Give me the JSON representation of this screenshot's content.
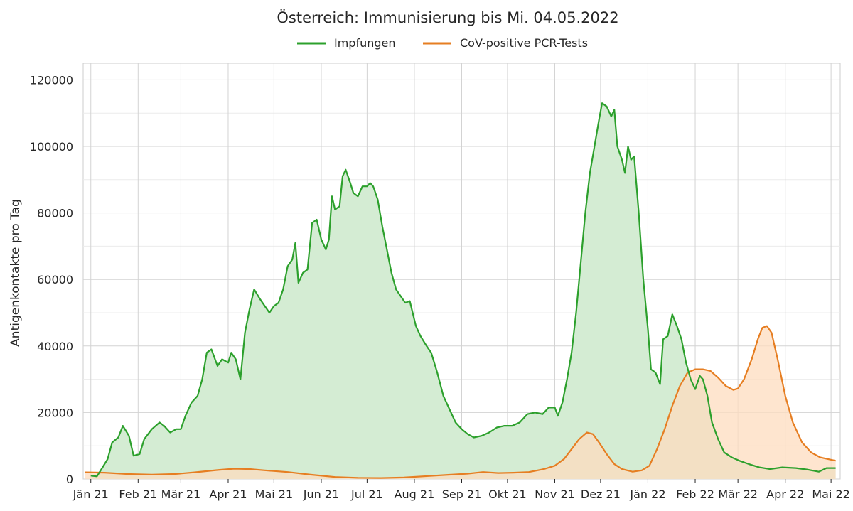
{
  "chart_data": {
    "type": "line",
    "title": "Österreich: Immunisierung bis Mi. 04.05.2022",
    "xlabel": "",
    "ylabel": "Antigenkontakte pro Tag",
    "ylim": [
      0,
      125000
    ],
    "xlim": [
      "2020-12-27",
      "2022-05-07"
    ],
    "yticks": [
      0,
      20000,
      40000,
      60000,
      80000,
      100000,
      120000
    ],
    "ytick_labels": [
      "0",
      "20000",
      "40000",
      "60000",
      "80000",
      "100000",
      "120000"
    ],
    "xticks": [
      {
        "date": "2021-01-01",
        "label": "Jän 21"
      },
      {
        "date": "2021-02-01",
        "label": "Feb 21"
      },
      {
        "date": "2021-03-01",
        "label": "Mär 21"
      },
      {
        "date": "2021-04-01",
        "label": "Apr 21"
      },
      {
        "date": "2021-05-01",
        "label": "Mai 21"
      },
      {
        "date": "2021-06-01",
        "label": "Jun 21"
      },
      {
        "date": "2021-07-01",
        "label": "Jul 21"
      },
      {
        "date": "2021-08-01",
        "label": "Aug 21"
      },
      {
        "date": "2021-09-01",
        "label": "Sep 21"
      },
      {
        "date": "2021-10-01",
        "label": "Okt 21"
      },
      {
        "date": "2021-11-01",
        "label": "Nov 21"
      },
      {
        "date": "2021-12-01",
        "label": "Dez 21"
      },
      {
        "date": "2022-01-01",
        "label": "Jän 22"
      },
      {
        "date": "2022-02-01",
        "label": "Feb 22"
      },
      {
        "date": "2022-03-01",
        "label": "Mär 22"
      },
      {
        "date": "2022-04-01",
        "label": "Apr 22"
      },
      {
        "date": "2022-05-01",
        "label": "Mai 22"
      }
    ],
    "grid": true,
    "legend_position": "top-center",
    "series": [
      {
        "name": "Impfungen",
        "color": "#2ca02c",
        "fill": "#d4ecd3",
        "points": [
          [
            "2021-01-01",
            1000
          ],
          [
            "2021-01-05",
            800
          ],
          [
            "2021-01-08",
            3000
          ],
          [
            "2021-01-12",
            6000
          ],
          [
            "2021-01-15",
            11000
          ],
          [
            "2021-01-19",
            12500
          ],
          [
            "2021-01-22",
            16000
          ],
          [
            "2021-01-26",
            13000
          ],
          [
            "2021-01-29",
            7000
          ],
          [
            "2021-02-02",
            7500
          ],
          [
            "2021-02-05",
            12000
          ],
          [
            "2021-02-10",
            15000
          ],
          [
            "2021-02-15",
            17000
          ],
          [
            "2021-02-18",
            16000
          ],
          [
            "2021-02-22",
            14000
          ],
          [
            "2021-02-26",
            15000
          ],
          [
            "2021-03-01",
            15000
          ],
          [
            "2021-03-04",
            19000
          ],
          [
            "2021-03-08",
            23000
          ],
          [
            "2021-03-12",
            25000
          ],
          [
            "2021-03-15",
            30000
          ],
          [
            "2021-03-18",
            38000
          ],
          [
            "2021-03-21",
            39000
          ],
          [
            "2021-03-25",
            34000
          ],
          [
            "2021-03-28",
            36000
          ],
          [
            "2021-04-01",
            35000
          ],
          [
            "2021-04-03",
            38000
          ],
          [
            "2021-04-06",
            36000
          ],
          [
            "2021-04-09",
            30000
          ],
          [
            "2021-04-12",
            44000
          ],
          [
            "2021-04-15",
            51000
          ],
          [
            "2021-04-18",
            57000
          ],
          [
            "2021-04-22",
            54000
          ],
          [
            "2021-04-25",
            52000
          ],
          [
            "2021-04-28",
            50000
          ],
          [
            "2021-05-01",
            52000
          ],
          [
            "2021-05-04",
            53000
          ],
          [
            "2021-05-07",
            57000
          ],
          [
            "2021-05-10",
            64000
          ],
          [
            "2021-05-13",
            66000
          ],
          [
            "2021-05-15",
            71000
          ],
          [
            "2021-05-17",
            59000
          ],
          [
            "2021-05-20",
            62000
          ],
          [
            "2021-05-23",
            63000
          ],
          [
            "2021-05-26",
            77000
          ],
          [
            "2021-05-29",
            78000
          ],
          [
            "2021-06-01",
            72000
          ],
          [
            "2021-06-04",
            69000
          ],
          [
            "2021-06-06",
            72000
          ],
          [
            "2021-06-08",
            85000
          ],
          [
            "2021-06-10",
            81000
          ],
          [
            "2021-06-13",
            82000
          ],
          [
            "2021-06-15",
            91000
          ],
          [
            "2021-06-17",
            93000
          ],
          [
            "2021-06-20",
            89000
          ],
          [
            "2021-06-22",
            86000
          ],
          [
            "2021-06-25",
            85000
          ],
          [
            "2021-06-28",
            88000
          ],
          [
            "2021-07-01",
            88000
          ],
          [
            "2021-07-03",
            89000
          ],
          [
            "2021-07-05",
            88000
          ],
          [
            "2021-07-08",
            84000
          ],
          [
            "2021-07-11",
            76000
          ],
          [
            "2021-07-14",
            69000
          ],
          [
            "2021-07-17",
            62000
          ],
          [
            "2021-07-20",
            57000
          ],
          [
            "2021-07-23",
            55000
          ],
          [
            "2021-07-26",
            53000
          ],
          [
            "2021-07-29",
            53500
          ],
          [
            "2021-08-02",
            46000
          ],
          [
            "2021-08-05",
            43000
          ],
          [
            "2021-08-09",
            40000
          ],
          [
            "2021-08-12",
            38000
          ],
          [
            "2021-08-16",
            32000
          ],
          [
            "2021-08-20",
            25000
          ],
          [
            "2021-08-24",
            21000
          ],
          [
            "2021-08-28",
            17000
          ],
          [
            "2021-09-01",
            15000
          ],
          [
            "2021-09-05",
            13500
          ],
          [
            "2021-09-09",
            12500
          ],
          [
            "2021-09-14",
            13000
          ],
          [
            "2021-09-19",
            14000
          ],
          [
            "2021-09-24",
            15500
          ],
          [
            "2021-09-29",
            16000
          ],
          [
            "2021-10-04",
            16000
          ],
          [
            "2021-10-09",
            17000
          ],
          [
            "2021-10-14",
            19500
          ],
          [
            "2021-10-19",
            20000
          ],
          [
            "2021-10-24",
            19500
          ],
          [
            "2021-10-28",
            21500
          ],
          [
            "2021-11-01",
            21500
          ],
          [
            "2021-11-03",
            19000
          ],
          [
            "2021-11-06",
            23000
          ],
          [
            "2021-11-09",
            30000
          ],
          [
            "2021-11-12",
            38000
          ],
          [
            "2021-11-15",
            50000
          ],
          [
            "2021-11-18",
            65000
          ],
          [
            "2021-11-21",
            80000
          ],
          [
            "2021-11-24",
            92000
          ],
          [
            "2021-11-27",
            100000
          ],
          [
            "2021-11-30",
            108000
          ],
          [
            "2021-12-02",
            113000
          ],
          [
            "2021-12-05",
            112000
          ],
          [
            "2021-12-08",
            109000
          ],
          [
            "2021-12-10",
            111000
          ],
          [
            "2021-12-12",
            100000
          ],
          [
            "2021-12-15",
            96000
          ],
          [
            "2021-12-17",
            92000
          ],
          [
            "2021-12-19",
            100000
          ],
          [
            "2021-12-21",
            96000
          ],
          [
            "2021-12-23",
            97000
          ],
          [
            "2021-12-26",
            80000
          ],
          [
            "2021-12-29",
            60000
          ],
          [
            "2022-01-01",
            45000
          ],
          [
            "2022-01-03",
            33000
          ],
          [
            "2022-01-06",
            32000
          ],
          [
            "2022-01-09",
            28500
          ],
          [
            "2022-01-11",
            42000
          ],
          [
            "2022-01-14",
            43000
          ],
          [
            "2022-01-17",
            49500
          ],
          [
            "2022-01-20",
            46000
          ],
          [
            "2022-01-23",
            42000
          ],
          [
            "2022-01-26",
            35000
          ],
          [
            "2022-01-29",
            30000
          ],
          [
            "2022-02-01",
            27000
          ],
          [
            "2022-02-04",
            31000
          ],
          [
            "2022-02-06",
            30000
          ],
          [
            "2022-02-09",
            25000
          ],
          [
            "2022-02-12",
            17000
          ],
          [
            "2022-02-16",
            12000
          ],
          [
            "2022-02-20",
            8000
          ],
          [
            "2022-02-25",
            6500
          ],
          [
            "2022-03-02",
            5500
          ],
          [
            "2022-03-08",
            4500
          ],
          [
            "2022-03-15",
            3500
          ],
          [
            "2022-03-22",
            3000
          ],
          [
            "2022-03-30",
            3500
          ],
          [
            "2022-04-08",
            3300
          ],
          [
            "2022-04-16",
            2800
          ],
          [
            "2022-04-23",
            2200
          ],
          [
            "2022-04-28",
            3300
          ],
          [
            "2022-05-04",
            3300
          ]
        ]
      },
      {
        "name": "CoV-positive PCR-Tests",
        "color": "#e67e22",
        "fill": "#fddcbf",
        "points": [
          [
            "2020-12-28",
            2000
          ],
          [
            "2021-01-10",
            1900
          ],
          [
            "2021-01-25",
            1500
          ],
          [
            "2021-02-10",
            1300
          ],
          [
            "2021-02-25",
            1500
          ],
          [
            "2021-03-10",
            2000
          ],
          [
            "2021-03-25",
            2700
          ],
          [
            "2021-04-05",
            3100
          ],
          [
            "2021-04-15",
            3000
          ],
          [
            "2021-04-25",
            2600
          ],
          [
            "2021-05-10",
            2100
          ],
          [
            "2021-05-25",
            1300
          ],
          [
            "2021-06-10",
            600
          ],
          [
            "2021-06-25",
            350
          ],
          [
            "2021-07-10",
            300
          ],
          [
            "2021-07-25",
            450
          ],
          [
            "2021-08-10",
            900
          ],
          [
            "2021-08-25",
            1300
          ],
          [
            "2021-09-05",
            1600
          ],
          [
            "2021-09-15",
            2100
          ],
          [
            "2021-09-25",
            1800
          ],
          [
            "2021-10-05",
            1900
          ],
          [
            "2021-10-15",
            2100
          ],
          [
            "2021-10-25",
            3000
          ],
          [
            "2021-11-01",
            4000
          ],
          [
            "2021-11-07",
            6000
          ],
          [
            "2021-11-12",
            9000
          ],
          [
            "2021-11-17",
            12000
          ],
          [
            "2021-11-22",
            14000
          ],
          [
            "2021-11-26",
            13500
          ],
          [
            "2021-11-30",
            11000
          ],
          [
            "2021-12-05",
            7500
          ],
          [
            "2021-12-10",
            4500
          ],
          [
            "2021-12-15",
            3000
          ],
          [
            "2021-12-22",
            2200
          ],
          [
            "2021-12-28",
            2600
          ],
          [
            "2022-01-02",
            4000
          ],
          [
            "2022-01-07",
            9000
          ],
          [
            "2022-01-12",
            15000
          ],
          [
            "2022-01-17",
            22000
          ],
          [
            "2022-01-22",
            28000
          ],
          [
            "2022-01-27",
            32000
          ],
          [
            "2022-02-01",
            33000
          ],
          [
            "2022-02-06",
            33000
          ],
          [
            "2022-02-11",
            32500
          ],
          [
            "2022-02-16",
            30500
          ],
          [
            "2022-02-21",
            28000
          ],
          [
            "2022-02-26",
            26800
          ],
          [
            "2022-03-01",
            27200
          ],
          [
            "2022-03-05",
            30000
          ],
          [
            "2022-03-10",
            36000
          ],
          [
            "2022-03-14",
            42000
          ],
          [
            "2022-03-17",
            45500
          ],
          [
            "2022-03-20",
            46000
          ],
          [
            "2022-03-23",
            44000
          ],
          [
            "2022-03-27",
            36000
          ],
          [
            "2022-04-01",
            25000
          ],
          [
            "2022-04-06",
            17000
          ],
          [
            "2022-04-12",
            11000
          ],
          [
            "2022-04-18",
            8000
          ],
          [
            "2022-04-24",
            6500
          ],
          [
            "2022-05-04",
            5500
          ]
        ]
      }
    ]
  }
}
